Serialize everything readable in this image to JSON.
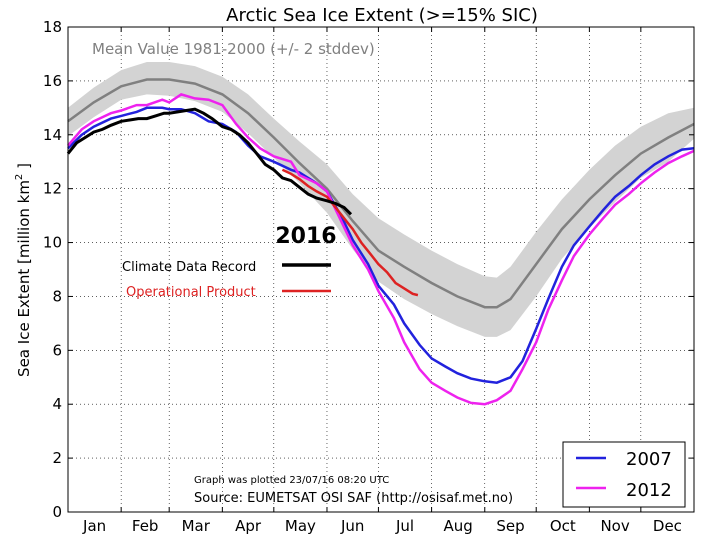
{
  "chart_data": {
    "type": "line",
    "title": "Arctic Sea Ice Extent (>=15% SIC)",
    "ylabel": "Sea Ice Extent [million km",
    "ylabel_sup": "2",
    "ylabel_end": " ]",
    "ylim": [
      0,
      18
    ],
    "xlim": [
      0,
      365
    ],
    "yticks": [
      0,
      2,
      4,
      6,
      8,
      10,
      12,
      14,
      16,
      18
    ],
    "months": [
      "Jan",
      "Feb",
      "Mar",
      "Apr",
      "May",
      "Jun",
      "Jul",
      "Aug",
      "Sep",
      "Oct",
      "Nov",
      "Dec"
    ],
    "grid": true,
    "mean_label": "Mean Value 1981-2000 (+/- 2 stddev)",
    "colors": {
      "mean": "#808080",
      "band": "#d3d3d3",
      "s2007": "#2222dd",
      "s2012": "#ee22ee",
      "cdr": "#000000",
      "operational": "#dd2222"
    },
    "mean": {
      "x": [
        0,
        15,
        31,
        46,
        59,
        74,
        90,
        105,
        120,
        135,
        151,
        166,
        181,
        196,
        212,
        227,
        243,
        250,
        258,
        273,
        288,
        304,
        319,
        334,
        350,
        365
      ],
      "y": [
        14.5,
        15.2,
        15.8,
        16.05,
        16.05,
        15.9,
        15.5,
        14.8,
        13.9,
        12.95,
        12.0,
        10.8,
        9.7,
        9.1,
        8.5,
        8.0,
        7.6,
        7.6,
        7.9,
        9.2,
        10.5,
        11.6,
        12.5,
        13.3,
        13.9,
        14.4
      ]
    },
    "band": {
      "x": [
        0,
        15,
        31,
        46,
        59,
        74,
        90,
        105,
        120,
        135,
        151,
        166,
        181,
        196,
        212,
        227,
        243,
        250,
        258,
        273,
        288,
        304,
        319,
        334,
        350,
        365
      ],
      "upper": [
        15.0,
        15.75,
        16.4,
        16.7,
        16.7,
        16.55,
        16.15,
        15.5,
        14.6,
        13.75,
        12.9,
        11.8,
        10.9,
        10.3,
        9.7,
        9.2,
        8.75,
        8.7,
        9.1,
        10.4,
        11.6,
        12.7,
        13.6,
        14.3,
        14.8,
        15.0
      ],
      "lower": [
        13.95,
        14.65,
        15.3,
        15.5,
        15.45,
        15.25,
        14.85,
        14.05,
        13.15,
        12.2,
        11.1,
        9.75,
        8.55,
        7.9,
        7.35,
        6.9,
        6.5,
        6.5,
        6.75,
        8.0,
        9.4,
        10.55,
        11.5,
        12.4,
        13.0,
        13.85
      ]
    },
    "series": [
      {
        "name": "2007",
        "x": [
          0,
          8,
          15,
          25,
          31,
          40,
          46,
          55,
          59,
          66,
          74,
          82,
          90,
          98,
          105,
          112,
          120,
          130,
          135,
          145,
          151,
          160,
          166,
          175,
          181,
          190,
          196,
          205,
          212,
          220,
          227,
          235,
          243,
          250,
          258,
          265,
          273,
          280,
          288,
          295,
          304,
          312,
          319,
          327,
          334,
          342,
          350,
          358,
          365
        ],
        "y": [
          13.5,
          14.0,
          14.3,
          14.6,
          14.7,
          14.85,
          15.0,
          15.0,
          14.95,
          14.95,
          14.8,
          14.5,
          14.4,
          14.1,
          13.6,
          13.2,
          13.0,
          12.7,
          12.6,
          12.2,
          11.9,
          10.9,
          10.1,
          9.2,
          8.4,
          7.7,
          7.0,
          6.2,
          5.7,
          5.4,
          5.15,
          4.95,
          4.85,
          4.8,
          5.0,
          5.6,
          6.8,
          7.9,
          9.1,
          9.9,
          10.6,
          11.2,
          11.7,
          12.1,
          12.5,
          12.9,
          13.2,
          13.45,
          13.5
        ]
      },
      {
        "name": "2012",
        "x": [
          0,
          8,
          15,
          25,
          31,
          40,
          46,
          55,
          59,
          66,
          74,
          82,
          90,
          98,
          105,
          112,
          120,
          130,
          135,
          145,
          151,
          160,
          166,
          175,
          181,
          190,
          196,
          205,
          212,
          220,
          227,
          235,
          243,
          250,
          258,
          265,
          273,
          280,
          288,
          295,
          304,
          312,
          319,
          327,
          334,
          342,
          350,
          358,
          365
        ],
        "y": [
          13.6,
          14.2,
          14.5,
          14.8,
          14.9,
          15.1,
          15.1,
          15.3,
          15.2,
          15.5,
          15.35,
          15.3,
          15.1,
          14.4,
          13.9,
          13.5,
          13.2,
          13.0,
          12.5,
          12.2,
          11.9,
          10.7,
          9.9,
          9.0,
          8.2,
          7.2,
          6.3,
          5.3,
          4.8,
          4.5,
          4.25,
          4.05,
          4.0,
          4.15,
          4.5,
          5.3,
          6.3,
          7.5,
          8.6,
          9.5,
          10.3,
          10.9,
          11.4,
          11.8,
          12.2,
          12.6,
          12.95,
          13.2,
          13.4
        ]
      }
    ],
    "cdr_2016": {
      "x": [
        0,
        5,
        10,
        15,
        20,
        25,
        31,
        36,
        41,
        46,
        51,
        56,
        59,
        64,
        69,
        74,
        79,
        84,
        90,
        95,
        100,
        105,
        110,
        115,
        120,
        125,
        130,
        135,
        140,
        145,
        151,
        156,
        161,
        165
      ],
      "y": [
        13.3,
        13.7,
        13.9,
        14.1,
        14.2,
        14.35,
        14.5,
        14.55,
        14.6,
        14.6,
        14.7,
        14.8,
        14.8,
        14.85,
        14.9,
        14.95,
        14.8,
        14.6,
        14.3,
        14.2,
        14.0,
        13.7,
        13.3,
        12.9,
        12.7,
        12.4,
        12.3,
        12.05,
        11.8,
        11.65,
        11.55,
        11.45,
        11.3,
        11.05
      ]
    },
    "operational_2016": {
      "x": [
        125,
        130,
        135,
        140,
        145,
        151,
        156,
        161,
        166,
        171,
        176,
        181,
        186,
        191,
        196,
        201,
        204
      ],
      "y": [
        12.7,
        12.55,
        12.35,
        12.1,
        11.9,
        11.7,
        11.3,
        10.9,
        10.5,
        10.0,
        9.6,
        9.2,
        8.9,
        8.5,
        8.3,
        8.1,
        8.05
      ]
    },
    "annotation": {
      "year": "2016",
      "cdr_label": "Climate Data Record",
      "operational_label": "Operational Product"
    },
    "legend": {
      "placement": "bottom-right",
      "entries": [
        "2007",
        "2012"
      ]
    },
    "footer": {
      "plotted": "Graph was plotted 23/07/16 08:20 UTC",
      "source": "Source: EUMETSAT OSI SAF (http://osisaf.met.no)"
    }
  }
}
